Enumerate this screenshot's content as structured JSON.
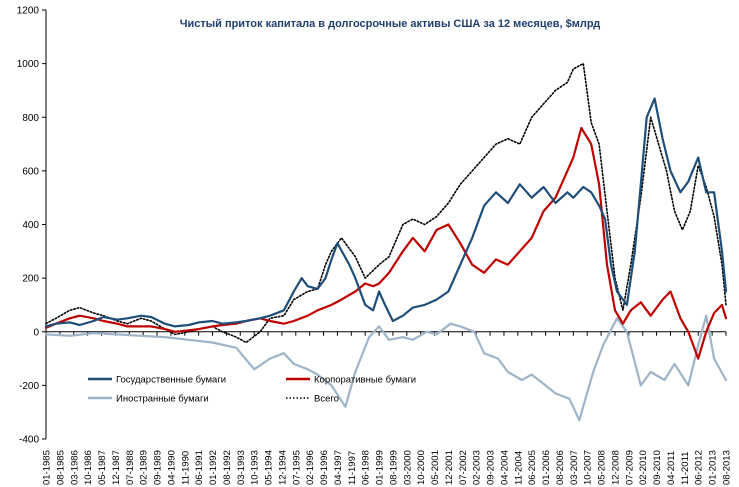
{
  "chart_data": {
    "type": "line",
    "title": "Чистый приток капитала в долгосрочные активы США  за 12 месяцев, $млрд",
    "xlabel": "",
    "ylabel": "",
    "ylim": [
      -400,
      1200
    ],
    "yticks": [
      -400,
      -200,
      0,
      200,
      400,
      600,
      800,
      1000,
      1200
    ],
    "xlim": [
      "01-1985",
      "08-2013"
    ],
    "x_tick_labels": [
      "01-1985",
      "08-1985",
      "03-1986",
      "10-1986",
      "05-1987",
      "12-1987",
      "07-1988",
      "02-1989",
      "09-1989",
      "04-1990",
      "11-1990",
      "06-1991",
      "01-1992",
      "08-1992",
      "03-1993",
      "10-1993",
      "05-1994",
      "12-1994",
      "07-1995",
      "02-1996",
      "09-1996",
      "04-1997",
      "11-1997",
      "06-1998",
      "01-1999",
      "08-1999",
      "03-2000",
      "10-2000",
      "05-2001",
      "12-2001",
      "07-2002",
      "02-2003",
      "09-2003",
      "04-2004",
      "11-2004",
      "06-2005",
      "01-2006",
      "08-2006",
      "03-2007",
      "10-2007",
      "05-2008",
      "12-2008",
      "07-2009",
      "02-2010",
      "09-2010",
      "04-2011",
      "11-2011",
      "06-2012",
      "01-2013",
      "08-2013"
    ],
    "grid": false,
    "legend": {
      "placement": "bottom-left"
    },
    "series": [
      {
        "name": "Государственные бумаги",
        "color": "#1f4e79",
        "style": "solid",
        "points": [
          [
            "1985-01",
            20
          ],
          [
            "1985-06",
            30
          ],
          [
            "1986-01",
            35
          ],
          [
            "1986-06",
            25
          ],
          [
            "1987-01",
            40
          ],
          [
            "1987-06",
            55
          ],
          [
            "1988-01",
            45
          ],
          [
            "1988-06",
            50
          ],
          [
            "1989-01",
            60
          ],
          [
            "1989-06",
            55
          ],
          [
            "1990-01",
            30
          ],
          [
            "1990-06",
            20
          ],
          [
            "1991-01",
            25
          ],
          [
            "1991-06",
            35
          ],
          [
            "1992-01",
            40
          ],
          [
            "1992-06",
            30
          ],
          [
            "1993-01",
            35
          ],
          [
            "1993-06",
            40
          ],
          [
            "1994-01",
            50
          ],
          [
            "1994-06",
            60
          ],
          [
            "1995-01",
            80
          ],
          [
            "1995-06",
            150
          ],
          [
            "1995-10",
            200
          ],
          [
            "1996-01",
            170
          ],
          [
            "1996-06",
            160
          ],
          [
            "1996-10",
            200
          ],
          [
            "1997-01",
            270
          ],
          [
            "1997-04",
            330
          ],
          [
            "1997-07",
            290
          ],
          [
            "1997-10",
            250
          ],
          [
            "1998-01",
            200
          ],
          [
            "1998-06",
            100
          ],
          [
            "1998-10",
            80
          ],
          [
            "1999-01",
            150
          ],
          [
            "1999-04",
            100
          ],
          [
            "1999-08",
            40
          ],
          [
            "2000-01",
            60
          ],
          [
            "2000-06",
            90
          ],
          [
            "2000-12",
            100
          ],
          [
            "2001-06",
            120
          ],
          [
            "2001-12",
            150
          ],
          [
            "2002-06",
            250
          ],
          [
            "2002-12",
            350
          ],
          [
            "2003-06",
            470
          ],
          [
            "2003-12",
            520
          ],
          [
            "2004-06",
            480
          ],
          [
            "2004-12",
            550
          ],
          [
            "2005-06",
            500
          ],
          [
            "2005-12",
            540
          ],
          [
            "2006-06",
            480
          ],
          [
            "2006-12",
            520
          ],
          [
            "2007-03",
            500
          ],
          [
            "2007-08",
            540
          ],
          [
            "2007-12",
            520
          ],
          [
            "2008-04",
            470
          ],
          [
            "2008-07",
            420
          ],
          [
            "2008-10",
            250
          ],
          [
            "2009-01",
            150
          ],
          [
            "2009-06",
            100
          ],
          [
            "2009-10",
            300
          ],
          [
            "2010-01",
            550
          ],
          [
            "2010-04",
            800
          ],
          [
            "2010-08",
            870
          ],
          [
            "2010-12",
            720
          ],
          [
            "2011-04",
            600
          ],
          [
            "2011-09",
            520
          ],
          [
            "2012-01",
            560
          ],
          [
            "2012-06",
            650
          ],
          [
            "2012-10",
            520
          ],
          [
            "2013-02",
            520
          ],
          [
            "2013-06",
            300
          ],
          [
            "2013-08",
            150
          ]
        ]
      },
      {
        "name": "Корпоративные бумаги",
        "color": "#c00000",
        "style": "solid",
        "points": [
          [
            "1985-01",
            15
          ],
          [
            "1985-06",
            30
          ],
          [
            "1986-01",
            50
          ],
          [
            "1986-06",
            60
          ],
          [
            "1987-01",
            50
          ],
          [
            "1987-06",
            40
          ],
          [
            "1988-01",
            30
          ],
          [
            "1988-06",
            20
          ],
          [
            "1989-01",
            20
          ],
          [
            "1989-06",
            20
          ],
          [
            "1990-01",
            10
          ],
          [
            "1990-06",
            0
          ],
          [
            "1991-01",
            5
          ],
          [
            "1991-06",
            10
          ],
          [
            "1992-01",
            20
          ],
          [
            "1992-06",
            25
          ],
          [
            "1993-01",
            30
          ],
          [
            "1993-06",
            40
          ],
          [
            "1994-01",
            50
          ],
          [
            "1994-06",
            40
          ],
          [
            "1995-01",
            30
          ],
          [
            "1995-06",
            40
          ],
          [
            "1996-01",
            60
          ],
          [
            "1996-06",
            80
          ],
          [
            "1997-01",
            100
          ],
          [
            "1997-06",
            120
          ],
          [
            "1998-01",
            150
          ],
          [
            "1998-06",
            180
          ],
          [
            "1998-10",
            170
          ],
          [
            "1999-01",
            180
          ],
          [
            "1999-06",
            220
          ],
          [
            "2000-01",
            300
          ],
          [
            "2000-06",
            350
          ],
          [
            "2000-12",
            300
          ],
          [
            "2001-06",
            380
          ],
          [
            "2001-12",
            400
          ],
          [
            "2002-06",
            330
          ],
          [
            "2002-12",
            250
          ],
          [
            "2003-06",
            220
          ],
          [
            "2003-12",
            270
          ],
          [
            "2004-06",
            250
          ],
          [
            "2004-12",
            300
          ],
          [
            "2005-06",
            350
          ],
          [
            "2005-12",
            450
          ],
          [
            "2006-06",
            500
          ],
          [
            "2006-12",
            600
          ],
          [
            "2007-03",
            650
          ],
          [
            "2007-07",
            760
          ],
          [
            "2007-12",
            700
          ],
          [
            "2008-04",
            550
          ],
          [
            "2008-08",
            250
          ],
          [
            "2008-12",
            80
          ],
          [
            "2009-04",
            30
          ],
          [
            "2009-08",
            80
          ],
          [
            "2010-01",
            110
          ],
          [
            "2010-06",
            60
          ],
          [
            "2010-12",
            120
          ],
          [
            "2011-04",
            150
          ],
          [
            "2011-09",
            50
          ],
          [
            "2012-01",
            0
          ],
          [
            "2012-06",
            -100
          ],
          [
            "2012-10",
            0
          ],
          [
            "2013-02",
            70
          ],
          [
            "2013-06",
            100
          ],
          [
            "2013-08",
            50
          ]
        ]
      },
      {
        "name": "Иностранные бумаги",
        "color": "#9fb4c8",
        "style": "solid",
        "points": [
          [
            "1985-01",
            -10
          ],
          [
            "1986-01",
            -15
          ],
          [
            "1987-01",
            -5
          ],
          [
            "1988-01",
            -10
          ],
          [
            "1989-01",
            -15
          ],
          [
            "1990-01",
            -20
          ],
          [
            "1991-01",
            -30
          ],
          [
            "1992-01",
            -40
          ],
          [
            "1993-01",
            -60
          ],
          [
            "1993-10",
            -140
          ],
          [
            "1994-06",
            -100
          ],
          [
            "1995-01",
            -80
          ],
          [
            "1995-06",
            -120
          ],
          [
            "1996-01",
            -140
          ],
          [
            "1996-06",
            -160
          ],
          [
            "1997-01",
            -200
          ],
          [
            "1997-08",
            -280
          ],
          [
            "1998-01",
            -150
          ],
          [
            "1998-08",
            -20
          ],
          [
            "1999-01",
            20
          ],
          [
            "1999-06",
            -30
          ],
          [
            "2000-01",
            -20
          ],
          [
            "2000-06",
            -30
          ],
          [
            "2001-01",
            0
          ],
          [
            "2001-06",
            -10
          ],
          [
            "2002-01",
            30
          ],
          [
            "2002-06",
            20
          ],
          [
            "2003-01",
            0
          ],
          [
            "2003-06",
            -80
          ],
          [
            "2004-01",
            -100
          ],
          [
            "2004-06",
            -150
          ],
          [
            "2005-01",
            -180
          ],
          [
            "2005-06",
            -160
          ],
          [
            "2006-01",
            -200
          ],
          [
            "2006-06",
            -230
          ],
          [
            "2007-01",
            -250
          ],
          [
            "2007-06",
            -330
          ],
          [
            "2008-01",
            -150
          ],
          [
            "2008-06",
            -50
          ],
          [
            "2009-01",
            50
          ],
          [
            "2009-06",
            0
          ],
          [
            "2010-01",
            -200
          ],
          [
            "2010-06",
            -150
          ],
          [
            "2011-01",
            -180
          ],
          [
            "2011-06",
            -120
          ],
          [
            "2012-01",
            -200
          ],
          [
            "2012-06",
            -50
          ],
          [
            "2012-10",
            60
          ],
          [
            "2013-02",
            -100
          ],
          [
            "2013-08",
            -180
          ]
        ]
      },
      {
        "name": "Всего",
        "color": "#000000",
        "style": "dotted",
        "points": [
          [
            "1985-01",
            30
          ],
          [
            "1985-06",
            50
          ],
          [
            "1986-01",
            80
          ],
          [
            "1986-06",
            90
          ],
          [
            "1987-01",
            70
          ],
          [
            "1987-06",
            60
          ],
          [
            "1988-01",
            40
          ],
          [
            "1988-06",
            30
          ],
          [
            "1989-01",
            50
          ],
          [
            "1989-06",
            40
          ],
          [
            "1990-01",
            10
          ],
          [
            "1990-06",
            -10
          ],
          [
            "1991-01",
            0
          ],
          [
            "1991-06",
            10
          ],
          [
            "1992-01",
            20
          ],
          [
            "1992-06",
            0
          ],
          [
            "1993-01",
            -20
          ],
          [
            "1993-06",
            -40
          ],
          [
            "1994-01",
            0
          ],
          [
            "1994-06",
            50
          ],
          [
            "1995-01",
            60
          ],
          [
            "1995-06",
            120
          ],
          [
            "1996-01",
            150
          ],
          [
            "1996-06",
            160
          ],
          [
            "1996-10",
            250
          ],
          [
            "1997-01",
            300
          ],
          [
            "1997-06",
            350
          ],
          [
            "1998-01",
            280
          ],
          [
            "1998-06",
            200
          ],
          [
            "1999-01",
            250
          ],
          [
            "1999-06",
            280
          ],
          [
            "2000-01",
            400
          ],
          [
            "2000-06",
            420
          ],
          [
            "2000-12",
            400
          ],
          [
            "2001-06",
            430
          ],
          [
            "2001-12",
            480
          ],
          [
            "2002-06",
            550
          ],
          [
            "2002-12",
            600
          ],
          [
            "2003-06",
            650
          ],
          [
            "2003-12",
            700
          ],
          [
            "2004-06",
            720
          ],
          [
            "2004-12",
            700
          ],
          [
            "2005-06",
            800
          ],
          [
            "2005-12",
            850
          ],
          [
            "2006-06",
            900
          ],
          [
            "2006-12",
            930
          ],
          [
            "2007-03",
            980
          ],
          [
            "2007-08",
            1000
          ],
          [
            "2007-12",
            780
          ],
          [
            "2008-04",
            700
          ],
          [
            "2008-08",
            450
          ],
          [
            "2008-12",
            200
          ],
          [
            "2009-04",
            80
          ],
          [
            "2009-08",
            250
          ],
          [
            "2010-01",
            500
          ],
          [
            "2010-06",
            800
          ],
          [
            "2010-10",
            700
          ],
          [
            "2011-02",
            600
          ],
          [
            "2011-06",
            450
          ],
          [
            "2011-10",
            380
          ],
          [
            "2012-02",
            450
          ],
          [
            "2012-06",
            620
          ],
          [
            "2012-10",
            540
          ],
          [
            "2013-02",
            430
          ],
          [
            "2013-06",
            250
          ],
          [
            "2013-08",
            100
          ]
        ]
      }
    ]
  }
}
